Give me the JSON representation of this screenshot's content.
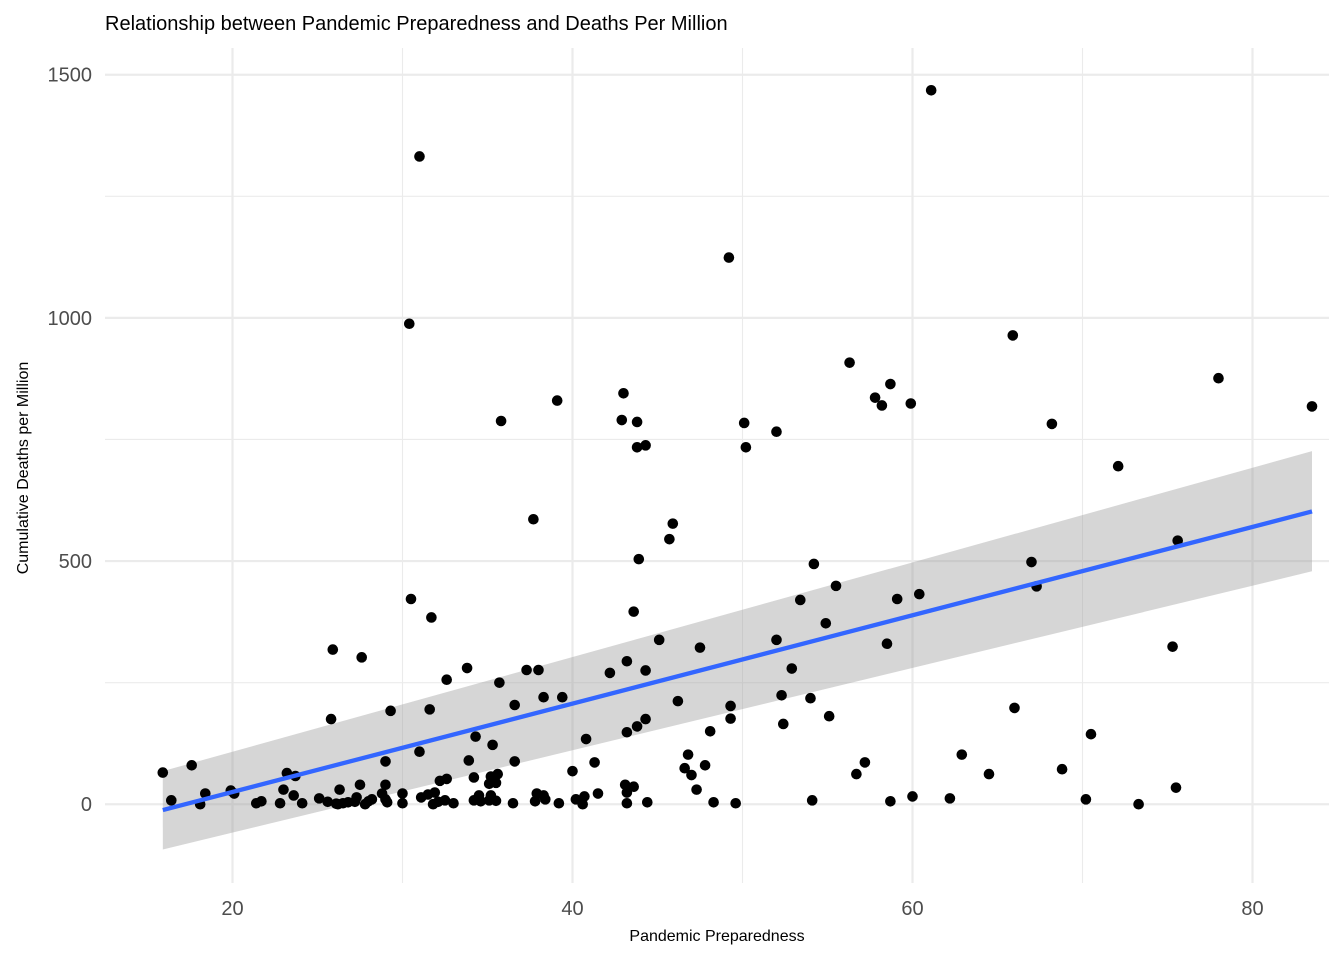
{
  "chart_data": {
    "type": "scatter",
    "title": "Relationship between Pandemic Preparedness and Deaths Per Million",
    "xlabel": "Pandemic Preparedness",
    "ylabel": "Cumulative Deaths per Million",
    "xlim": [
      12.5,
      84.5
    ],
    "ylim": [
      -162,
      1555
    ],
    "x_ticks": [
      20,
      40,
      60,
      80
    ],
    "y_ticks": [
      0,
      500,
      1000,
      1500
    ],
    "x_tick_labels": [
      "20",
      "40",
      "60",
      "80"
    ],
    "y_tick_labels": [
      "0",
      "500",
      "1000",
      "1500"
    ],
    "grid": true,
    "legend": "none",
    "colors": {
      "points": "#000000",
      "trend_line": "#3366ff",
      "confidence_band": "#999999"
    },
    "trend_line": {
      "method": "linear fit",
      "x": [
        15.9,
        83.5
      ],
      "y": [
        -12,
        602
      ],
      "ci_lower": [
        -93,
        479
      ],
      "ci_upper": [
        68,
        726
      ]
    },
    "points": [
      [
        15.9,
        65
      ],
      [
        16.4,
        8
      ],
      [
        17.6,
        80
      ],
      [
        18.1,
        0
      ],
      [
        18.4,
        22
      ],
      [
        19.9,
        28
      ],
      [
        20.1,
        22
      ],
      [
        21.4,
        2
      ],
      [
        21.7,
        6
      ],
      [
        22.8,
        2
      ],
      [
        23.0,
        30
      ],
      [
        23.2,
        64
      ],
      [
        23.6,
        18
      ],
      [
        23.7,
        58
      ],
      [
        24.1,
        2
      ],
      [
        25.1,
        12
      ],
      [
        25.6,
        5
      ],
      [
        25.8,
        175
      ],
      [
        25.9,
        318
      ],
      [
        26.1,
        1
      ],
      [
        26.2,
        0
      ],
      [
        26.3,
        30
      ],
      [
        26.5,
        2
      ],
      [
        26.8,
        4
      ],
      [
        27.2,
        5
      ],
      [
        27.3,
        14
      ],
      [
        27.5,
        40
      ],
      [
        27.6,
        302
      ],
      [
        27.8,
        0
      ],
      [
        28.0,
        6
      ],
      [
        28.2,
        10
      ],
      [
        28.8,
        22
      ],
      [
        29.0,
        88
      ],
      [
        29.0,
        40
      ],
      [
        29.0,
        10
      ],
      [
        29.1,
        4
      ],
      [
        29.3,
        192
      ],
      [
        30.0,
        22
      ],
      [
        30.0,
        2
      ],
      [
        30.4,
        988
      ],
      [
        30.5,
        422
      ],
      [
        31.0,
        1332
      ],
      [
        31.0,
        108
      ],
      [
        31.1,
        14
      ],
      [
        31.5,
        20
      ],
      [
        31.6,
        195
      ],
      [
        31.7,
        384
      ],
      [
        31.8,
        0
      ],
      [
        31.9,
        24
      ],
      [
        32.1,
        5
      ],
      [
        32.2,
        48
      ],
      [
        32.5,
        8
      ],
      [
        32.6,
        52
      ],
      [
        32.6,
        256
      ],
      [
        33.0,
        2
      ],
      [
        33.8,
        280
      ],
      [
        33.9,
        90
      ],
      [
        34.2,
        8
      ],
      [
        34.2,
        55
      ],
      [
        34.3,
        139
      ],
      [
        34.5,
        18
      ],
      [
        34.6,
        6
      ],
      [
        35.1,
        42
      ],
      [
        35.1,
        8
      ],
      [
        35.2,
        57
      ],
      [
        35.2,
        18
      ],
      [
        35.3,
        122
      ],
      [
        35.5,
        7
      ],
      [
        35.5,
        44
      ],
      [
        35.6,
        62
      ],
      [
        35.7,
        250
      ],
      [
        35.8,
        788
      ],
      [
        36.5,
        2
      ],
      [
        36.6,
        204
      ],
      [
        36.6,
        88
      ],
      [
        37.3,
        276
      ],
      [
        37.7,
        586
      ],
      [
        37.8,
        6
      ],
      [
        37.9,
        22
      ],
      [
        38.0,
        276
      ],
      [
        38.3,
        220
      ],
      [
        38.3,
        18
      ],
      [
        38.4,
        10
      ],
      [
        39.1,
        830
      ],
      [
        39.2,
        2
      ],
      [
        39.4,
        220
      ],
      [
        40.0,
        68
      ],
      [
        40.2,
        10
      ],
      [
        40.6,
        0
      ],
      [
        40.7,
        16
      ],
      [
        40.8,
        134
      ],
      [
        41.3,
        86
      ],
      [
        41.5,
        22
      ],
      [
        42.2,
        270
      ],
      [
        42.9,
        790
      ],
      [
        43.0,
        845
      ],
      [
        43.1,
        40
      ],
      [
        43.2,
        24
      ],
      [
        43.2,
        294
      ],
      [
        43.2,
        148
      ],
      [
        43.2,
        2
      ],
      [
        43.6,
        36
      ],
      [
        43.6,
        396
      ],
      [
        43.8,
        786
      ],
      [
        43.8,
        160
      ],
      [
        43.8,
        734
      ],
      [
        43.9,
        504
      ],
      [
        44.3,
        738
      ],
      [
        44.3,
        275
      ],
      [
        44.3,
        175
      ],
      [
        44.4,
        4
      ],
      [
        45.1,
        338
      ],
      [
        45.7,
        545
      ],
      [
        45.9,
        577
      ],
      [
        46.2,
        212
      ],
      [
        46.6,
        74
      ],
      [
        46.8,
        102
      ],
      [
        47.0,
        60
      ],
      [
        47.3,
        30
      ],
      [
        47.5,
        322
      ],
      [
        47.8,
        80
      ],
      [
        48.1,
        150
      ],
      [
        48.3,
        4
      ],
      [
        49.2,
        1124
      ],
      [
        49.3,
        176
      ],
      [
        49.3,
        202
      ],
      [
        49.6,
        2
      ],
      [
        50.1,
        784
      ],
      [
        50.2,
        734
      ],
      [
        52.0,
        766
      ],
      [
        52.0,
        338
      ],
      [
        52.3,
        224
      ],
      [
        52.4,
        165
      ],
      [
        52.9,
        279
      ],
      [
        53.4,
        420
      ],
      [
        54.0,
        218
      ],
      [
        54.1,
        8
      ],
      [
        54.2,
        494
      ],
      [
        54.9,
        372
      ],
      [
        55.1,
        181
      ],
      [
        55.5,
        449
      ],
      [
        56.3,
        908
      ],
      [
        56.7,
        62
      ],
      [
        57.2,
        86
      ],
      [
        57.8,
        836
      ],
      [
        58.2,
        820
      ],
      [
        58.5,
        330
      ],
      [
        58.7,
        864
      ],
      [
        58.7,
        6
      ],
      [
        59.1,
        422
      ],
      [
        59.9,
        824
      ],
      [
        60.0,
        16
      ],
      [
        60.4,
        432
      ],
      [
        61.1,
        1468
      ],
      [
        62.2,
        12
      ],
      [
        62.9,
        102
      ],
      [
        64.5,
        62
      ],
      [
        65.9,
        964
      ],
      [
        66.0,
        198
      ],
      [
        67.0,
        498
      ],
      [
        67.3,
        448
      ],
      [
        68.2,
        782
      ],
      [
        68.8,
        72
      ],
      [
        70.2,
        10
      ],
      [
        70.5,
        144
      ],
      [
        72.1,
        695
      ],
      [
        73.3,
        0
      ],
      [
        75.3,
        324
      ],
      [
        75.5,
        34
      ],
      [
        75.6,
        542
      ],
      [
        78.0,
        876
      ],
      [
        83.5,
        818
      ]
    ]
  }
}
